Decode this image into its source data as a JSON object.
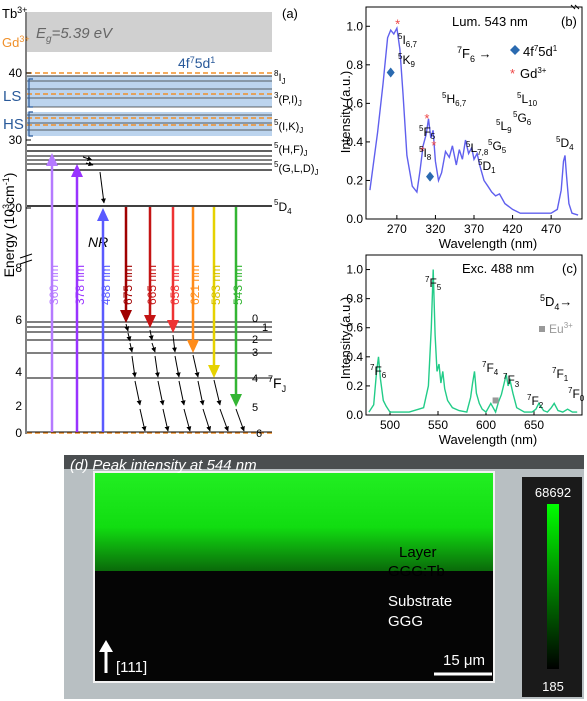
{
  "panel_a": {
    "label": "(a)",
    "ion1": "Tb",
    "ion1_charge": "3+",
    "ion2": "Gd",
    "ion2_charge": "3+",
    "gap_label": "E",
    "gap_sub": "g",
    "gap_value": "=5.39 eV",
    "band_label": "4f",
    "band_sup": "7",
    "band_label2": "5d",
    "band_sup2": "1",
    "ls_label": "LS",
    "hs_label": "HS",
    "ylabel_main": "Energy (10",
    "ylabel_sup": "3",
    "ylabel_unit": "cm",
    "ylabel_sup2": "-1",
    "ylabel_end": ")",
    "yticks_upper": [
      "40",
      "30",
      "20"
    ],
    "yticks_lower": [
      "8",
      "6",
      "4",
      "2",
      "0"
    ],
    "nr_label": "NR",
    "levels_right": [
      {
        "text": "8",
        "sub": "I",
        "subsub": "J"
      },
      {
        "text": "3",
        "sub": "(P,I)",
        "subsub": "J"
      },
      {
        "text": "5",
        "sub": "(I,K)",
        "subsub": "J"
      },
      {
        "text": "5",
        "sub": "(H,F)",
        "subsub": "J"
      },
      {
        "text": "5",
        "sub": "(G,L,D)",
        "subsub": "J"
      }
    ],
    "d4_label": {
      "sup": "5",
      "main": "D",
      "sub": "4"
    },
    "fj_label": {
      "sup": "7",
      "main": "F",
      "sub": "J"
    },
    "fj_levels": [
      "0",
      "1",
      "2",
      "3",
      "4",
      "5",
      "6"
    ],
    "excitations": [
      {
        "label": "360 nm",
        "color": "#b57aff"
      },
      {
        "label": "378 nm",
        "color": "#9933ff"
      },
      {
        "label": "488 nm",
        "color": "#5a5aff"
      }
    ],
    "emissions": [
      {
        "label": "675 nm",
        "color": "#a00000"
      },
      {
        "label": "665 nm",
        "color": "#c41414"
      },
      {
        "label": "658 nm",
        "color": "#ee3333"
      },
      {
        "label": "621 nm",
        "color": "#ff8c1a"
      },
      {
        "label": "583 nm",
        "color": "#e6d200"
      },
      {
        "label": "543 nm",
        "color": "#33b533"
      }
    ]
  },
  "panel_b": {
    "label": "(b)",
    "title": "Lum. 543 nm",
    "transition_left": "F",
    "transition_left_sup": "7",
    "transition_left_sub": "6",
    "legend_diamond_sup": "7",
    "legend_diamond": "4f",
    "legend_diamond2": "5d",
    "legend_diamond_sup2": "1",
    "legend_star": "Gd",
    "legend_star_sup": "3+",
    "xlabel": "Wavelength (nm)",
    "ylabel": "Intensity (a.u.)",
    "peak_labels": [
      {
        "sup": "5",
        "main": "I",
        "sub": "6,7"
      },
      {
        "sup": "5",
        "main": "K",
        "sub": "9"
      },
      {
        "sup": "5",
        "main": "H",
        "sub": "6,7"
      },
      {
        "sup": "5",
        "main": "F",
        "sub": "5"
      },
      {
        "sup": "5",
        "main": "I",
        "sub": "8"
      },
      {
        "sup": "5",
        "main": "L",
        "sub": "7,8"
      },
      {
        "sup": "5",
        "main": "D",
        "sub": "1"
      },
      {
        "sup": "5",
        "main": "L",
        "sub": "9"
      },
      {
        "sup": "5",
        "main": "G",
        "sub": "5"
      },
      {
        "sup": "5",
        "main": "L",
        "sub": "10"
      },
      {
        "sup": "5",
        "main": "G",
        "sub": "6"
      },
      {
        "sup": "5",
        "main": "D",
        "sub": "4"
      }
    ]
  },
  "panel_c": {
    "label": "(c)",
    "title": "Exc. 488 nm",
    "transition": "D",
    "transition_sup": "5",
    "transition_sub": "4",
    "legend_eu": "Eu",
    "legend_eu_sup": "3+",
    "xlabel": "Wavelength (nm)",
    "ylabel": "Intensity (a.u.)",
    "peak_labels": [
      {
        "sup": "7",
        "main": "F",
        "sub": "6"
      },
      {
        "sup": "7",
        "main": "F",
        "sub": "5"
      },
      {
        "sup": "7",
        "main": "F",
        "sub": "4"
      },
      {
        "sup": "7",
        "main": "F",
        "sub": "3"
      },
      {
        "sup": "7",
        "main": "F",
        "sub": "2"
      },
      {
        "sup": "7",
        "main": "F",
        "sub": "1"
      },
      {
        "sup": "7",
        "main": "F",
        "sub": "0"
      }
    ]
  },
  "panel_d": {
    "label": "(d)",
    "title": "Peak intensity at 544 nm",
    "layer_label_1": "Layer",
    "layer_label_2": "GGG:Tb",
    "substrate_label_1": "Substrate",
    "substrate_label_2": "GGG",
    "direction": "[111]",
    "scalebar": "15 μm",
    "colorbar_max": "68692",
    "colorbar_min": "185"
  },
  "chart_data": [
    {
      "type": "line",
      "panel": "b",
      "title": "Lum. 543 nm",
      "xlabel": "Wavelength (nm)",
      "ylabel": "Intensity (a.u.)",
      "xlim": [
        230,
        510
      ],
      "ylim": [
        0,
        1.1
      ],
      "xticks": [
        270,
        320,
        370,
        420,
        470
      ],
      "yticks": [
        0.0,
        0.2,
        0.4,
        0.6,
        0.8,
        1.0
      ],
      "color": "#6060ee",
      "series": [
        {
          "x": [
            235,
            245,
            252,
            258,
            262,
            266,
            270,
            274,
            278,
            283,
            290,
            296,
            300,
            304,
            308,
            311,
            314,
            317,
            320,
            324,
            328,
            333,
            338,
            342,
            347,
            351,
            355,
            359,
            363,
            367,
            370,
            374,
            378,
            383,
            388,
            393,
            398,
            403,
            410,
            420,
            430,
            440,
            450,
            460,
            470,
            478,
            483,
            486,
            488,
            490,
            493,
            497,
            505
          ],
          "y": [
            0.15,
            0.45,
            0.7,
            0.94,
            0.98,
            0.96,
            0.99,
            0.88,
            0.65,
            0.33,
            0.17,
            0.14,
            0.25,
            0.38,
            0.44,
            0.52,
            0.42,
            0.46,
            0.3,
            0.2,
            0.24,
            0.35,
            0.32,
            0.38,
            0.28,
            0.36,
            0.31,
            0.41,
            0.34,
            0.37,
            0.31,
            0.34,
            0.27,
            0.2,
            0.17,
            0.14,
            0.12,
            0.13,
            0.08,
            0.05,
            0.03,
            0.03,
            0.03,
            0.03,
            0.03,
            0.05,
            0.15,
            0.3,
            0.33,
            0.22,
            0.08,
            0.03,
            0.02
          ]
        }
      ],
      "markers": [
        {
          "type": "diamond",
          "label": "4f7 5d1",
          "x": [
            262,
            313
          ],
          "y": [
            0.76,
            0.22
          ]
        },
        {
          "type": "star",
          "label": "Gd3+",
          "x": [
            271,
            303,
            309,
            318
          ],
          "y": [
            1.02,
            0.36,
            0.53,
            0.39
          ]
        }
      ]
    },
    {
      "type": "line",
      "panel": "c",
      "title": "Exc. 488 nm",
      "xlabel": "Wavelength (nm)",
      "ylabel": "Intensity (a.u.)",
      "xlim": [
        475,
        700
      ],
      "ylim": [
        0,
        1.1
      ],
      "xticks": [
        500,
        550,
        600,
        650
      ],
      "yticks": [
        0.0,
        0.2,
        0.4,
        0.6,
        0.8,
        1.0
      ],
      "color": "#22cc88",
      "series": [
        {
          "x": [
            478,
            483,
            486,
            488,
            490,
            493,
            496,
            500,
            520,
            535,
            540,
            543,
            545,
            547,
            549,
            551,
            553,
            555,
            557,
            560,
            565,
            572,
            580,
            584,
            586,
            588,
            590,
            593,
            596,
            600,
            605,
            610,
            613,
            616,
            619,
            621,
            623,
            625,
            628,
            632,
            640,
            648,
            652,
            655,
            660,
            664,
            668,
            671,
            675,
            680,
            685,
            690,
            695
          ],
          "y": [
            0.02,
            0.07,
            0.3,
            0.4,
            0.25,
            0.1,
            0.06,
            0.02,
            0.02,
            0.05,
            0.2,
            0.6,
            1.0,
            0.55,
            0.3,
            0.35,
            0.22,
            0.3,
            0.18,
            0.1,
            0.05,
            0.03,
            0.02,
            0.12,
            0.22,
            0.3,
            0.15,
            0.08,
            0.04,
            0.02,
            0.08,
            0.02,
            0.09,
            0.14,
            0.22,
            0.28,
            0.2,
            0.24,
            0.15,
            0.05,
            0.02,
            0.02,
            0.04,
            0.08,
            0.03,
            0.02,
            0.05,
            0.08,
            0.03,
            0.02,
            0.04,
            0.02,
            0.02
          ]
        }
      ],
      "markers": [
        {
          "type": "square",
          "label": "Eu3+",
          "x": [
            610
          ],
          "y": [
            0.1
          ]
        }
      ]
    }
  ]
}
